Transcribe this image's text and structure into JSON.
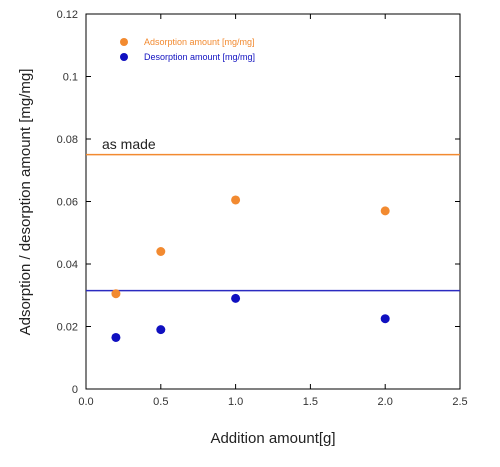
{
  "chart_data": {
    "type": "scatter",
    "xlabel": "Addition amount[g]",
    "ylabel": "Adsorption / desorption amount [mg/mg]",
    "xlim": [
      0,
      2.5
    ],
    "ylim": [
      0,
      0.12
    ],
    "xticks": [
      "0.0",
      "0.5",
      "1.0",
      "1.5",
      "2.0",
      "2.5"
    ],
    "yticks": [
      "0",
      "0.02",
      "0.04",
      "0.06",
      "0.08",
      "0.1",
      "0.12"
    ],
    "grid": false,
    "legend_position": "top-left",
    "series": [
      {
        "name": "Adsorption amount [mg/mg]",
        "color": "#f28a30",
        "marker": "circle",
        "x": [
          0.2,
          0.5,
          1.0,
          2.0
        ],
        "y": [
          0.0305,
          0.044,
          0.0605,
          0.057
        ]
      },
      {
        "name": "Desorption amount [mg/mg]",
        "color": "#1010c0",
        "marker": "circle",
        "x": [
          0.2,
          0.5,
          1.0,
          2.0
        ],
        "y": [
          0.0165,
          0.019,
          0.029,
          0.0225
        ]
      }
    ],
    "reference_lines": [
      {
        "y": 0.075,
        "color": "#f28a30",
        "label": "as made"
      },
      {
        "y": 0.0315,
        "color": "#2b2bc0",
        "label": ""
      }
    ]
  }
}
